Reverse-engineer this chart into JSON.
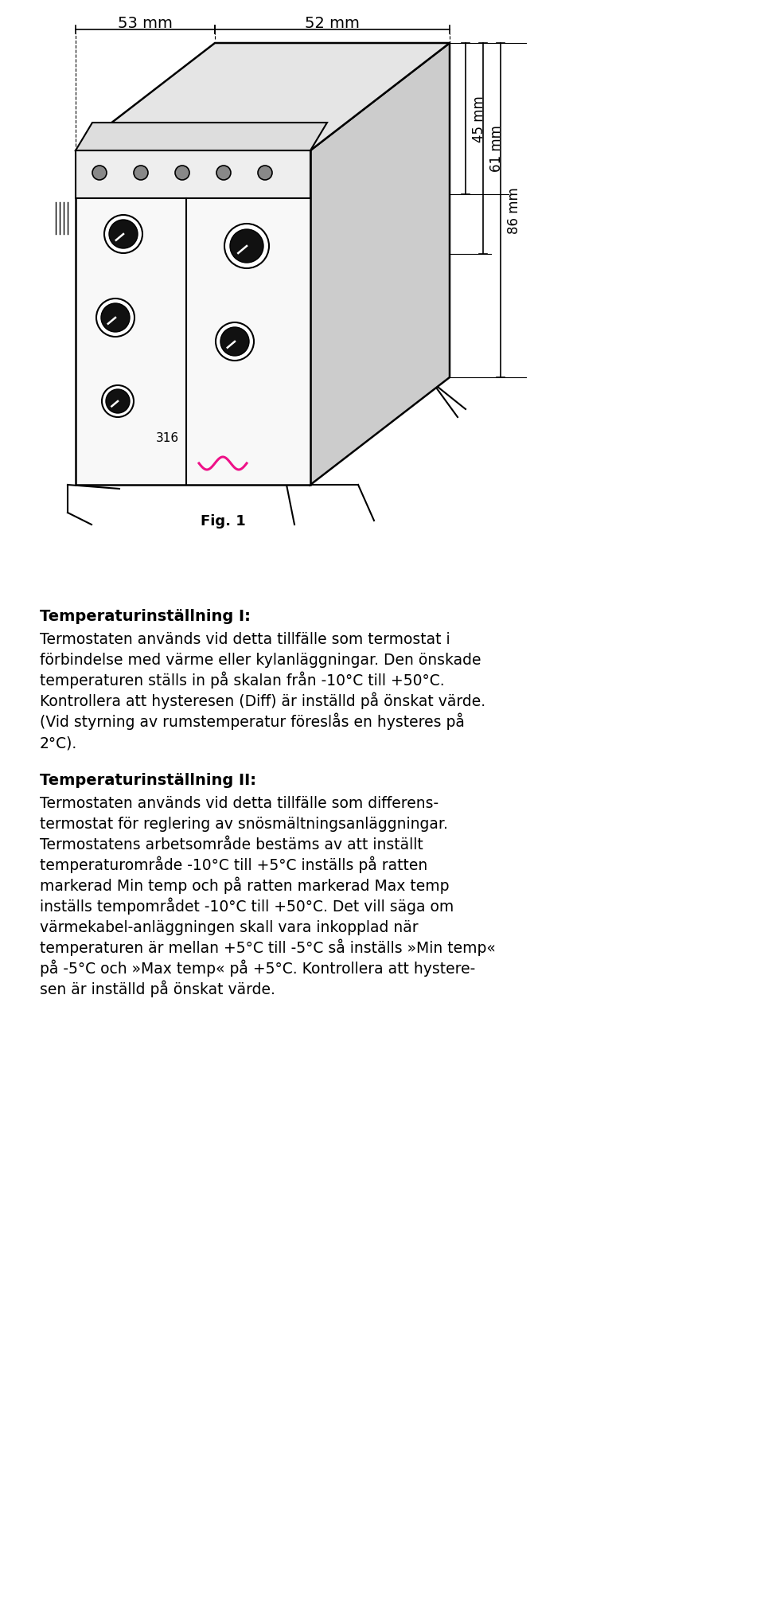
{
  "fig_label": "Fig. 1",
  "dim_53": "53 mm",
  "dim_52": "52 mm",
  "dim_45": "45 mm",
  "dim_61": "61 mm",
  "dim_86": "86 mm",
  "section1_title": "Temperaturinställning I:",
  "section1_lines": [
    "Termostaten används vid detta tillfälle som termostat i",
    "förbindelse med värme eller kylanläggningar. Den önskade",
    "temperaturen ställs in på skalan från -10°C till +50°C.",
    "Kontrollera att hysteresen (Diff) är inställd på önskat värde.",
    "(Vid styrning av rumstemperatur föreslås en hysteres på",
    "2°C)."
  ],
  "section2_title": "Temperaturinställning II:",
  "section2_lines": [
    "Termostaten används vid detta tillfälle som differens-",
    "termostat för reglering av snösmältningsanläggningar.",
    "Termostatens arbetsområde bestäms av att inställt",
    "temperaturområde -10°C till +5°C inställs på ratten",
    "markerad Min temp och på ratten markerad Max temp",
    "inställs tempområdet -10°C till +50°C. Det vill säga om",
    "värmekabel-anläggningen skall vara inkopplad när",
    "temperaturen är mellan +5°C till -5°C så inställs »Min temp«",
    "på -5°C och »Max temp« på +5°C. Kontrollera att hystere-",
    "sen är inställd på önskat värde."
  ],
  "bg_color": "#ffffff",
  "text_color": "#000000",
  "title_fontsize": 14,
  "body_fontsize": 13.5
}
